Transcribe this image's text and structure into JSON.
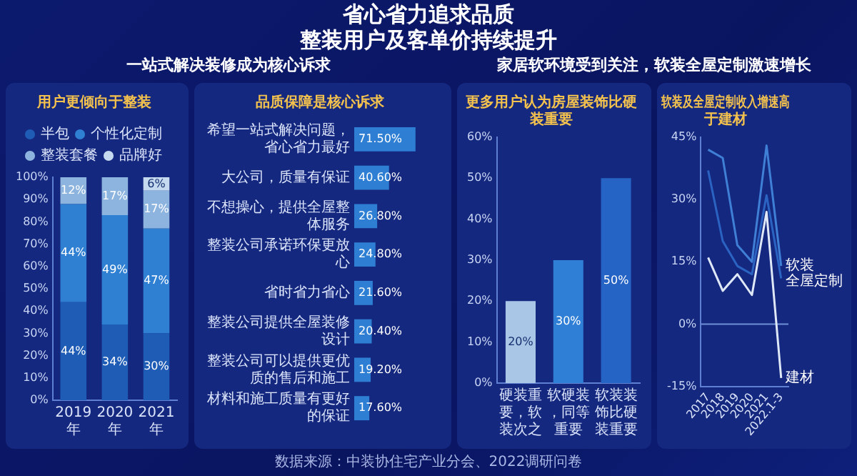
{
  "chart_data": [
    {
      "type": "bar",
      "title": "用户更倾向于整装",
      "annotations": [
        "省心省力追求品质",
        "整装用户及客单价持续提升",
        "一站式解决装修成为核心诉求"
      ],
      "categories": [
        "2019年",
        "2020年",
        "2021年"
      ],
      "stacked": true,
      "legend": "top",
      "ylim": [
        0,
        100
      ],
      "yticks": [
        {
          "value": 0,
          "label": "0%"
        },
        {
          "value": 10,
          "label": "10%"
        },
        {
          "value": 20,
          "label": "20%"
        },
        {
          "value": 30,
          "label": "30%"
        },
        {
          "value": 40,
          "label": "40%"
        },
        {
          "value": 50,
          "label": "50%"
        },
        {
          "value": 60,
          "label": "60%"
        },
        {
          "value": 70,
          "label": "70%"
        },
        {
          "value": 80,
          "label": "80%"
        },
        {
          "value": 90,
          "label": "90%"
        },
        {
          "value": 100,
          "label": "100%"
        }
      ],
      "series": [
        {
          "name": "半包",
          "color": "#1f5cb5",
          "values": [
            44,
            34,
            30
          ],
          "value_labels": [
            "44%",
            "34%",
            "30%"
          ]
        },
        {
          "name": "个性化定制",
          "color": "#2f7fd3",
          "values": [
            44,
            49,
            47
          ],
          "value_labels": [
            "44%",
            "49%",
            "47%"
          ]
        },
        {
          "name": "整装套餐",
          "color": "#8db4de",
          "values": [
            12,
            17,
            17
          ],
          "value_labels": [
            "12%",
            "17%",
            "17%"
          ]
        },
        {
          "name": "品牌好",
          "color": "#c5d9ef",
          "values": [
            null,
            null,
            6
          ],
          "value_labels": [
            null,
            null,
            "6%"
          ]
        }
      ]
    },
    {
      "type": "bar",
      "orientation": "horizontal",
      "title": "品质保障是核心诉求",
      "tick_labels": "y",
      "color": "#2e7fd3",
      "categories": [
        "希望一站式解决问题，省心省力最好",
        "大公司，质量有保证",
        "不想操心，提供全屋整体服务",
        "整装公司承诺环保更放心",
        "省时省力省心",
        "整装公司提供全屋装修设计",
        "整装公司可以提供更优质的售后和施工",
        "材料和施工质量有更好的保证"
      ],
      "values": [
        71.5,
        40.6,
        26.8,
        24.8,
        21.6,
        20.4,
        19.2,
        17.6
      ],
      "value_labels": [
        "71.50%",
        "40.60%",
        "26.80%",
        "24.80%",
        "21.60%",
        "20.40%",
        "19.20%",
        "17.60%"
      ]
    },
    {
      "type": "bar",
      "title": "更多用户认为房屋装饰比硬装重要",
      "annotations": [
        "家居软环境受到关注，软装全屋定制激速增长"
      ],
      "categories": [
        "硬装重要，软装次之",
        "软硬装，同等重要",
        "软装装饰比硬装重要"
      ],
      "values": [
        20,
        30,
        50
      ],
      "value_labels": [
        "20%",
        "30%",
        "50%"
      ],
      "colors": [
        "#a9c6e6",
        "#2f7fd6",
        "#2563c4"
      ],
      "ylim": [
        0,
        60
      ],
      "yticks": [
        {
          "value": 0,
          "label": "0%"
        },
        {
          "value": 10,
          "label": "10%"
        },
        {
          "value": 20,
          "label": "20%"
        },
        {
          "value": 30,
          "label": "30%"
        },
        {
          "value": 40,
          "label": "40%"
        },
        {
          "value": 50,
          "label": "50%"
        },
        {
          "value": 60,
          "label": "60%"
        }
      ]
    },
    {
      "type": "line",
      "title": "软装及全屋定制收入增速高于建材",
      "annotations": [
        "数据来源：中装协住宅产业分会、2022调研问卷"
      ],
      "categories": [
        "2017",
        "2018",
        "2019",
        "2020",
        "2021",
        "2022.1-3"
      ],
      "ylim": [
        -15,
        45
      ],
      "yticks": [
        {
          "value": -15,
          "label": "-15%"
        },
        {
          "value": 0,
          "label": "0%"
        },
        {
          "value": 15,
          "label": "15%"
        },
        {
          "value": 30,
          "label": "30%"
        },
        {
          "value": 45,
          "label": "45%"
        }
      ],
      "marker": "none",
      "legend": false,
      "ref_lines": [
        {
          "axis": "y",
          "value": 0,
          "color": "#6f8fd8"
        }
      ],
      "series": [
        {
          "name": "软装",
          "color": "#3f7fd6",
          "values": [
            42,
            40,
            19,
            15,
            43,
            14
          ]
        },
        {
          "name": "全屋定制",
          "color": "#2a63c2",
          "values": [
            37,
            20,
            14,
            12,
            31,
            11
          ]
        },
        {
          "name": "建材",
          "color": "#dfe8f7",
          "values": [
            16,
            8,
            12,
            7,
            27,
            -13
          ]
        }
      ]
    }
  ]
}
